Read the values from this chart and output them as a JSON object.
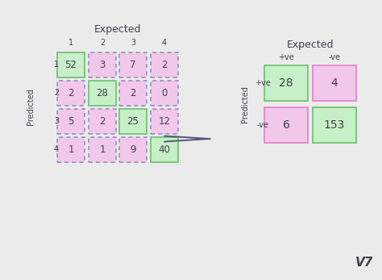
{
  "background_color": "#ebebeb",
  "green_fill": "#c8f0c8",
  "green_border": "#6dbe6d",
  "pink_fill": "#f2c8ea",
  "pink_border": "#e080c8",
  "dashed_border_color": "#9090c0",
  "text_color": "#404050",
  "matrix4x4": [
    [
      52,
      3,
      7,
      2
    ],
    [
      2,
      28,
      2,
      0
    ],
    [
      5,
      2,
      25,
      12
    ],
    [
      1,
      1,
      9,
      40
    ]
  ],
  "matrix4x4_colors": [
    [
      "green",
      "pink",
      "pink",
      "pink"
    ],
    [
      "pink",
      "green",
      "pink",
      "pink"
    ],
    [
      "pink",
      "pink",
      "green",
      "pink"
    ],
    [
      "pink",
      "pink",
      "pink",
      "green"
    ]
  ],
  "matrix4x4_dashed": [
    [
      false,
      true,
      true,
      true
    ],
    [
      true,
      false,
      true,
      true
    ],
    [
      true,
      true,
      false,
      true
    ],
    [
      true,
      true,
      true,
      false
    ]
  ],
  "matrix2x2": [
    [
      28,
      4
    ],
    [
      6,
      153
    ]
  ],
  "matrix2x2_colors": [
    [
      "green",
      "pink"
    ],
    [
      "pink",
      "green"
    ]
  ],
  "label_expected": "Expected",
  "label_predicted": "Predicted",
  "col_labels_4": [
    "1",
    "2",
    "3",
    "4"
  ],
  "row_labels_4": [
    "1",
    "2",
    "3",
    "4"
  ],
  "col_labels_2": [
    "+ve",
    "-ve"
  ],
  "row_labels_2": [
    "+ve",
    "-ve"
  ],
  "title_fontsize": 9,
  "cell_fontsize": 8.5,
  "cell_fontsize_2x2": 10,
  "label_fontsize": 7,
  "axis_label_fontsize": 7,
  "v7_fontsize": 11
}
